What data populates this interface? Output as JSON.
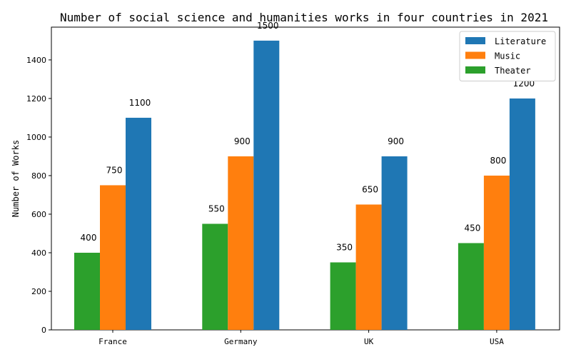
{
  "chart_data": {
    "type": "bar",
    "title": "Number of social science and humanities works in four countries in 2021",
    "xlabel": "",
    "ylabel": "Number of Works",
    "categories": [
      "France",
      "Germany",
      "UK",
      "USA"
    ],
    "series": [
      {
        "name": "Theater",
        "values": [
          400,
          550,
          350,
          450
        ],
        "color": "#2ca02c"
      },
      {
        "name": "Music",
        "values": [
          750,
          900,
          650,
          800
        ],
        "color": "#ff7f0e"
      },
      {
        "name": "Literature",
        "values": [
          1100,
          1500,
          900,
          1200
        ],
        "color": "#1f77b4"
      }
    ],
    "legend_order": [
      "Literature",
      "Music",
      "Theater"
    ],
    "legend_placement": "top-right",
    "ylim": [
      0,
      1570
    ],
    "yticks": [
      0,
      200,
      400,
      600,
      800,
      1000,
      1200,
      1400
    ],
    "grid": false
  }
}
